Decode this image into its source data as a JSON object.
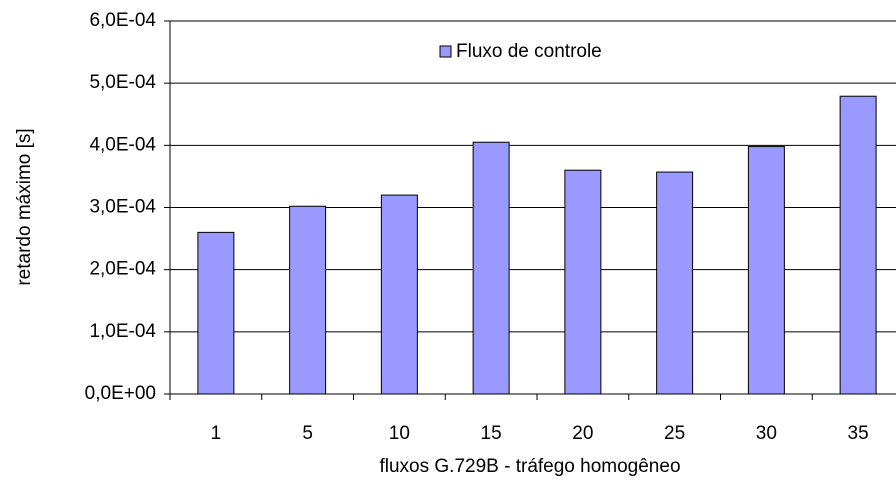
{
  "chart_data": {
    "type": "bar",
    "categories": [
      "1",
      "5",
      "10",
      "15",
      "20",
      "25",
      "30",
      "35"
    ],
    "series": [
      {
        "name": "Fluxo de controle",
        "color": "#9999ff",
        "values": [
          0.00026,
          0.000302,
          0.00032,
          0.000405,
          0.00036,
          0.000357,
          0.000398,
          0.000479
        ]
      }
    ],
    "xlabel": "fluxos G.729B - tráfego homogêneo",
    "ylabel": "retardo máximo [s]",
    "ylim": [
      0,
      0.0006
    ],
    "yticks": [
      {
        "value": 0,
        "label": "0,0E+00"
      },
      {
        "value": 0.0001,
        "label": "1,0E-04"
      },
      {
        "value": 0.0002,
        "label": "2,0E-04"
      },
      {
        "value": 0.0003,
        "label": "3,0E-04"
      },
      {
        "value": 0.0004,
        "label": "4,0E-04"
      },
      {
        "value": 0.0005,
        "label": "5,0E-04"
      },
      {
        "value": 0.0006,
        "label": "6,0E-04"
      }
    ],
    "grid": true
  }
}
